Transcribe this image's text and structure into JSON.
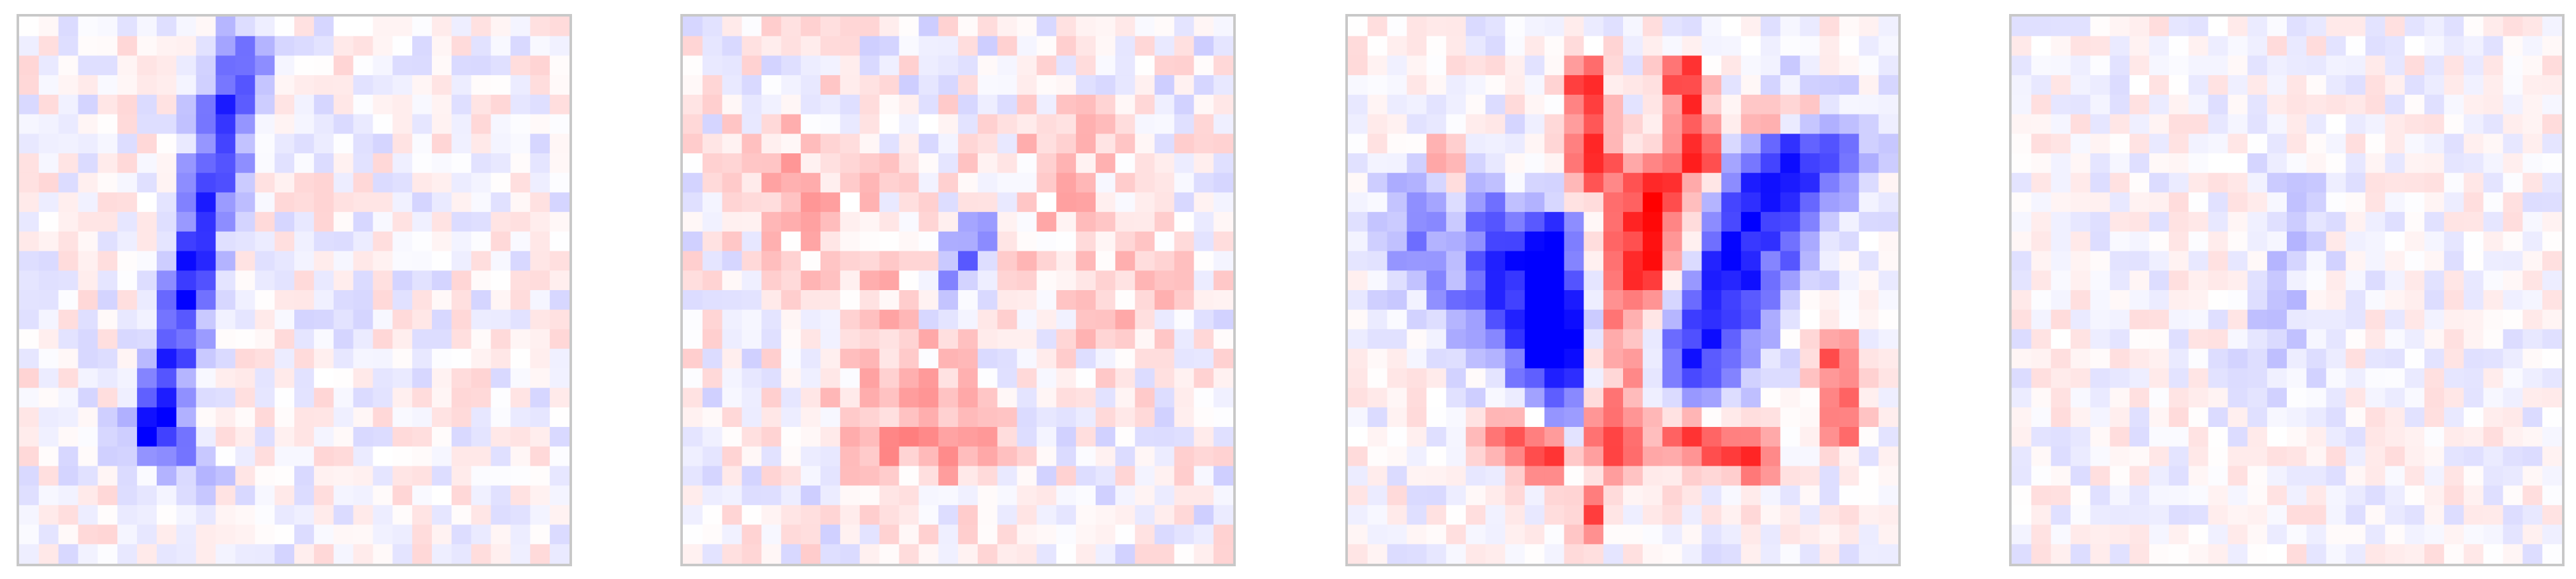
{
  "chart_data": [
    {
      "type": "heatmap",
      "grid_size": [
        28,
        28
      ],
      "colormap": "bwr",
      "value_range": [
        -1,
        1
      ],
      "axes": "off",
      "pattern": {
        "noise_amplitude": 0.17,
        "seed": 11,
        "blobs": [
          {
            "sign": -1,
            "strength": 0.75,
            "from": [
              11.3,
              1.8
            ],
            "to": [
              6.8,
              21.5
            ],
            "width": 1.0
          },
          {
            "sign": -1,
            "strength": 0.3,
            "from": [
              7.2,
              21.2
            ],
            "to": [
              9.2,
              23.2
            ],
            "width": 0.9
          }
        ]
      }
    },
    {
      "type": "heatmap",
      "grid_size": [
        28,
        28
      ],
      "colormap": "bwr",
      "value_range": [
        -1,
        1
      ],
      "axes": "off",
      "pattern": {
        "noise_amplitude": 0.2,
        "seed": 23,
        "blobs": [
          {
            "sign": -1,
            "strength": 0.45,
            "from": [
              15.0,
              11.0
            ],
            "to": [
              13.5,
              14.5
            ],
            "width": 0.8
          },
          {
            "sign": 1,
            "strength": 0.22,
            "from": [
              6.0,
              8.0
            ],
            "to": [
              12.0,
              20.0
            ],
            "width": 2.5
          },
          {
            "sign": 1,
            "strength": 0.22,
            "from": [
              19.0,
              8.0
            ],
            "to": [
              22.0,
              14.0
            ],
            "width": 2.5
          },
          {
            "sign": 1,
            "strength": 0.25,
            "from": [
              10.0,
              21.5
            ],
            "to": [
              15.0,
              22.5
            ],
            "width": 1.2
          }
        ]
      }
    },
    {
      "type": "heatmap",
      "grid_size": [
        28,
        28
      ],
      "colormap": "bwr",
      "value_range": [
        -1,
        1
      ],
      "axes": "off",
      "pattern": {
        "noise_amplitude": 0.15,
        "seed": 37,
        "blobs": [
          {
            "sign": 1,
            "strength": 1.0,
            "from": [
              15.5,
              9.5
            ],
            "to": [
              13.0,
              21.5
            ],
            "width": 1.6
          },
          {
            "sign": -1,
            "strength": 0.9,
            "from": [
              5.5,
              11.0
            ],
            "to": [
              11.5,
              17.5
            ],
            "width": 2.2
          },
          {
            "sign": -1,
            "strength": 0.95,
            "from": [
              10.5,
              11.5
            ],
            "to": [
              10.5,
              16.5
            ],
            "width": 0.9
          },
          {
            "sign": -1,
            "strength": 0.9,
            "from": [
              23.0,
              7.0
            ],
            "to": [
              17.5,
              17.0
            ],
            "width": 2.0
          },
          {
            "sign": 1,
            "strength": 0.8,
            "from": [
              12.0,
              3.0
            ],
            "to": [
              12.5,
              7.5
            ],
            "width": 0.8
          },
          {
            "sign": 1,
            "strength": 0.85,
            "from": [
              17.0,
              3.0
            ],
            "to": [
              18.0,
              7.0
            ],
            "width": 0.8
          },
          {
            "sign": 1,
            "strength": 0.7,
            "from": [
              20.5,
              5.0
            ],
            "to": [
              23.0,
              5.0
            ],
            "width": 0.8
          },
          {
            "sign": 1,
            "strength": 0.5,
            "from": [
              5.0,
              7.0
            ],
            "to": [
              5.5,
              13.0
            ],
            "width": 0.8
          },
          {
            "sign": 1,
            "strength": 0.6,
            "from": [
              24.5,
              17.0
            ],
            "to": [
              25.0,
              21.0
            ],
            "width": 0.8
          },
          {
            "sign": 1,
            "strength": 0.75,
            "from": [
              8.0,
              21.5
            ],
            "to": [
              10.0,
              22.5
            ],
            "width": 0.9
          },
          {
            "sign": 1,
            "strength": 0.8,
            "from": [
              17.5,
              21.5
            ],
            "to": [
              20.5,
              22.5
            ],
            "width": 0.9
          },
          {
            "sign": -1,
            "strength": 0.6,
            "from": [
              11.0,
              19.0
            ],
            "to": [
              12.0,
              23.5
            ],
            "width": 0.7
          },
          {
            "sign": 1,
            "strength": 0.7,
            "from": [
              12.5,
              25.0
            ],
            "to": [
              12.5,
              26.0
            ],
            "width": 0.6
          }
        ]
      }
    },
    {
      "type": "heatmap",
      "grid_size": [
        28,
        28
      ],
      "colormap": "bwr",
      "value_range": [
        -1,
        1
      ],
      "axes": "off",
      "pattern": {
        "noise_amplitude": 0.14,
        "seed": 53,
        "blobs": [
          {
            "sign": -1,
            "strength": 0.18,
            "from": [
              14.5,
              9.0
            ],
            "to": [
              13.5,
              19.0
            ],
            "width": 1.3
          }
        ]
      }
    }
  ]
}
